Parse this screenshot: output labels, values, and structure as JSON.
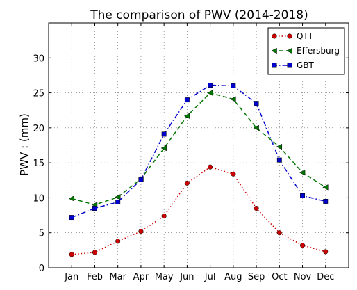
{
  "chart_data": {
    "type": "line",
    "title": "The comparison of PWV (2014-2018)",
    "xlabel": "",
    "ylabel": "PWV : (mm)",
    "categories": [
      "Jan",
      "Feb",
      "Mar",
      "Apr",
      "May",
      "Jun",
      "Jul",
      "Aug",
      "Sep",
      "Oct",
      "Nov",
      "Dec"
    ],
    "ylim": [
      0,
      35
    ],
    "yticks": [
      0,
      5,
      10,
      15,
      20,
      25,
      30
    ],
    "grid": true,
    "legend_position": "top-right",
    "series": [
      {
        "name": "QTT",
        "color": "#cc0000",
        "dash": "dotted",
        "marker": "circle",
        "values": [
          1.9,
          2.2,
          3.8,
          5.2,
          7.4,
          12.1,
          14.4,
          13.4,
          8.5,
          5.0,
          3.2,
          2.3
        ]
      },
      {
        "name": "Effersburg",
        "color": "#007700",
        "dash": "dashed",
        "marker": "triangle-left",
        "values": [
          9.9,
          9.0,
          10.1,
          12.7,
          17.1,
          21.7,
          25.0,
          24.1,
          20.0,
          17.3,
          13.6,
          11.5
        ]
      },
      {
        "name": "GBT",
        "color": "#0000cc",
        "dash": "dashdot",
        "marker": "square",
        "values": [
          7.2,
          8.5,
          9.4,
          12.6,
          19.1,
          24.0,
          26.1,
          26.0,
          23.5,
          15.4,
          10.3,
          9.5
        ]
      }
    ]
  }
}
